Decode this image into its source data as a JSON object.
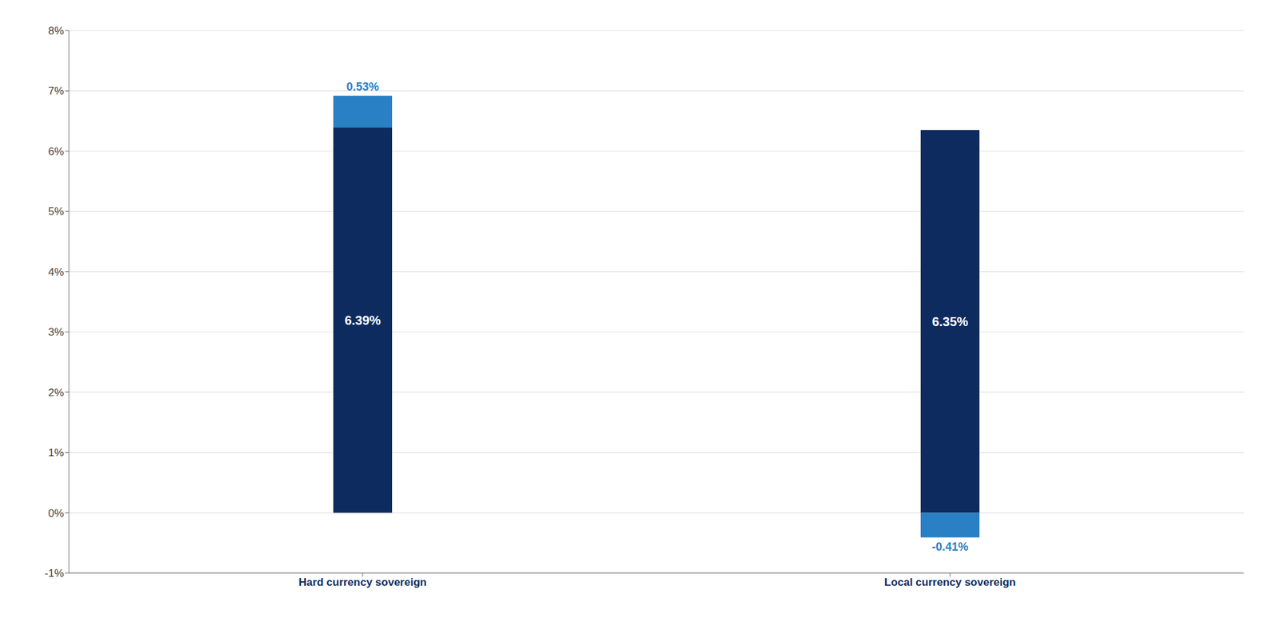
{
  "chart_data": {
    "type": "bar",
    "stacked": true,
    "categories": [
      "Hard currency sovereign",
      "Local currency sovereign"
    ],
    "series": [
      {
        "color": "#0d2b5e",
        "values": [
          6.39,
          6.35
        ],
        "value_labels": [
          "6.39%",
          "6.35%"
        ]
      },
      {
        "color": "#2980c4",
        "values": [
          0.53,
          -0.41
        ],
        "value_labels": [
          "0.53%",
          "-0.41%"
        ]
      }
    ],
    "ylim": [
      -1.0,
      8.0
    ],
    "yticks": [
      {
        "value": -1,
        "label": "-1%"
      },
      {
        "value": 0,
        "label": "0%"
      },
      {
        "value": 1,
        "label": "1%"
      },
      {
        "value": 2,
        "label": "2%"
      },
      {
        "value": 3,
        "label": "3%"
      },
      {
        "value": 4,
        "label": "4%"
      },
      {
        "value": 5,
        "label": "5%"
      },
      {
        "value": 6,
        "label": "6%"
      },
      {
        "value": 7,
        "label": "7%"
      },
      {
        "value": 8,
        "label": "8%"
      }
    ],
    "grid": true,
    "data_labels": true
  }
}
